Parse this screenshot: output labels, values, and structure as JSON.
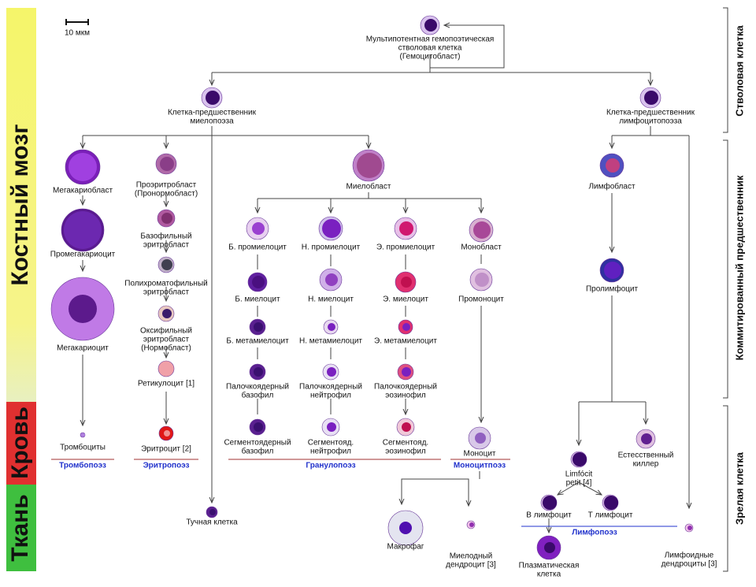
{
  "scale_label": "10 мкм",
  "zones": [
    "Костный мозг",
    "Кровь",
    "Ткань"
  ],
  "stages": [
    "Стволовая клетка",
    "Коммитированный предшественник",
    "Зрелая клетка"
  ],
  "nodes": [
    {
      "lines": [
        "Мультипотентная гемопоэтическая",
        "стволовая клетка",
        "(Гемоцитобласт)"
      ]
    },
    {
      "lines": [
        "Клетка-предшественник",
        "миелопоэза"
      ]
    },
    {
      "lines": [
        "Клетка-предшественник",
        "лимфоцитопоэза"
      ]
    },
    {
      "lines": [
        "Мегакариобласт"
      ]
    },
    {
      "lines": [
        "Промегакариоцит"
      ]
    },
    {
      "lines": [
        "Мегакариоцит"
      ]
    },
    {
      "lines": [
        "Тромбоциты"
      ]
    },
    {
      "lines": [
        "Проэритробласт",
        "(Пронормобласт)"
      ]
    },
    {
      "lines": [
        "Базофильный",
        "эритробласт"
      ]
    },
    {
      "lines": [
        "Полихроматофильный",
        "эритробласт"
      ]
    },
    {
      "lines": [
        "Оксифильный",
        "эритробласт",
        "(Нормобласт)"
      ]
    },
    {
      "lines": [
        "Ретикулоцит [1]"
      ]
    },
    {
      "lines": [
        "Эритроцит [2]"
      ]
    },
    {
      "lines": [
        "Миелобласт"
      ]
    },
    {
      "lines": [
        "Б. промиелоцит"
      ]
    },
    {
      "lines": [
        "Н. промиелоцит"
      ]
    },
    {
      "lines": [
        "Э. промиелоцит"
      ]
    },
    {
      "lines": [
        "Монобласт"
      ]
    },
    {
      "lines": [
        "Б. миелоцит"
      ]
    },
    {
      "lines": [
        "Н. миелоцит"
      ]
    },
    {
      "lines": [
        "Э. миелоцит"
      ]
    },
    {
      "lines": [
        "Промоноцит"
      ]
    },
    {
      "lines": [
        "Б. метамиелоцит"
      ]
    },
    {
      "lines": [
        "Н. метамиелоцит"
      ]
    },
    {
      "lines": [
        "Э. метамиелоцит"
      ]
    },
    {
      "lines": [
        "Палочкоядерный",
        "базофил"
      ]
    },
    {
      "lines": [
        "Палочкоядерный",
        "нейтрофил"
      ]
    },
    {
      "lines": [
        "Палочкоядерный",
        "эозинофил"
      ]
    },
    {
      "lines": [
        "Сегментоядерный",
        "базофил"
      ]
    },
    {
      "lines": [
        "Сегментояд.",
        "нейтрофил"
      ]
    },
    {
      "lines": [
        "Сегментояд.",
        "эозинофил"
      ]
    },
    {
      "lines": [
        "Моноцит"
      ]
    },
    {
      "lines": [
        "Тучная клетка"
      ]
    },
    {
      "lines": [
        "Макрофаг"
      ]
    },
    {
      "lines": [
        "Миелодный",
        "дендроцит [3]"
      ]
    },
    {
      "lines": [
        "Лимфобласт"
      ]
    },
    {
      "lines": [
        "Пролимфоцит"
      ]
    },
    {
      "lines": [
        "Естесственный",
        "киллер"
      ]
    },
    {
      "lines": [
        "Limfócit",
        "petit [4]"
      ]
    },
    {
      "lines": [
        "В лимфоцит"
      ]
    },
    {
      "lines": [
        "Т лимфоцит"
      ]
    },
    {
      "lines": [
        "Плазматическая",
        "клетка"
      ]
    },
    {
      "lines": [
        "Лимфоидные",
        "дендроциты [3]"
      ]
    }
  ],
  "groups": [
    "Тромбопоэз",
    "Эритропоэз",
    "Гранулопоэз",
    "Моноцитпоэз",
    "Лимфопоэз"
  ]
}
